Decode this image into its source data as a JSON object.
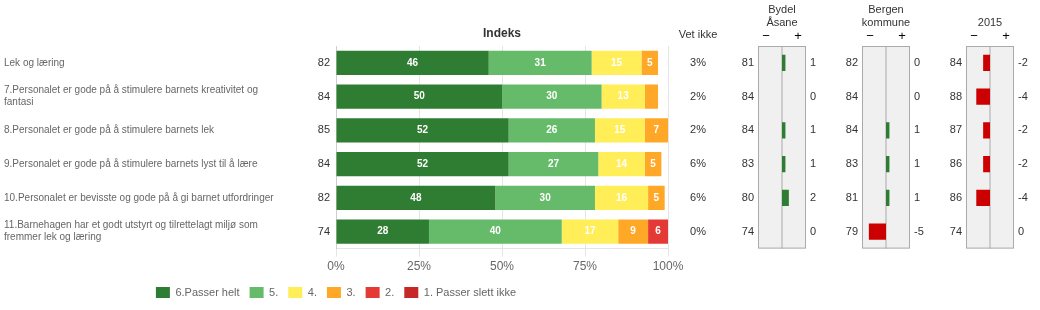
{
  "chart_data": [
    {
      "type": "bar",
      "orientation": "horizontal",
      "stacked": true,
      "title": "Indeks",
      "categories": [
        "Lek og læring",
        "7.Personalet er gode på å stimulere barnets kreativitet og\nfantasi",
        "8.Personalet er gode på å stimulere barnets lek",
        "9.Personalet er gode på å stimulere barnets lyst til å lære",
        "10.Personalet er bevisste og gode på å gi barnet utfordringer",
        "11.Barnehagen har et godt utstyrt og tilrettelagt miljø som\nfremmer lek og læring"
      ],
      "series": [
        {
          "name": "6.Passer helt",
          "color": "#2e7d32",
          "values": [
            46,
            50,
            52,
            52,
            48,
            28
          ],
          "value_labels": [
            "46",
            "50",
            "52",
            "52",
            "48",
            "28"
          ]
        },
        {
          "name": "5.",
          "color": "#66bb6a",
          "values": [
            31,
            30,
            26,
            27,
            30,
            40
          ],
          "value_labels": [
            "31",
            "30",
            "26",
            "27",
            "30",
            "40"
          ]
        },
        {
          "name": "4.",
          "color": "#ffee58",
          "values": [
            15,
            13,
            15,
            14,
            16,
            17
          ],
          "value_labels": [
            "15",
            "13",
            "15",
            "14",
            "16",
            "17"
          ]
        },
        {
          "name": "3.",
          "color": "#ffa726",
          "values": [
            5,
            4,
            7,
            5,
            5,
            9
          ],
          "value_labels": [
            "5",
            null,
            "7",
            "5",
            "5",
            "9"
          ]
        },
        {
          "name": "2.",
          "color": "#e53935",
          "values": [
            0,
            0,
            0,
            0,
            0,
            6
          ],
          "value_labels": [
            null,
            null,
            null,
            null,
            null,
            "6"
          ]
        },
        {
          "name": "1. Passer slett ikke",
          "color": "#c62828",
          "values": [
            null,
            null,
            null,
            null,
            null,
            null
          ]
        }
      ],
      "xlim": [
        0,
        100
      ],
      "xticks": [
        {
          "value": 0,
          "label": "0%"
        },
        {
          "value": 25,
          "label": "25%"
        },
        {
          "value": 50,
          "label": "50%"
        },
        {
          "value": 75,
          "label": "75%"
        },
        {
          "value": 100,
          "label": "100%"
        }
      ],
      "grid": true,
      "data_labels": true,
      "legend": "bottom",
      "index": [
        82,
        84,
        85,
        84,
        82,
        74
      ],
      "vet_ikke": {
        "title": "Vet ikke",
        "labels": [
          "3%",
          "2%",
          "2%",
          "6%",
          "6%",
          "0%"
        ]
      }
    },
    {
      "type": "bar",
      "orientation": "horizontal",
      "title": "Bydel\nÅsane",
      "values": [
        1,
        0,
        1,
        1,
        2,
        0
      ],
      "colors": [
        "#2e7d32",
        "#2e7d32",
        "#2e7d32",
        "#2e7d32",
        "#2e7d32",
        "#2e7d32"
      ],
      "xlim": [
        -7,
        7
      ],
      "tick_labels": false,
      "data_labels": true,
      "annotations": [
        "−",
        "+"
      ],
      "index": [
        81,
        84,
        84,
        83,
        80,
        74
      ]
    },
    {
      "type": "bar",
      "orientation": "horizontal",
      "title": "Bergen\nkommune",
      "values": [
        0,
        0,
        1,
        1,
        1,
        -5
      ],
      "colors": [
        "#2e7d32",
        "#2e7d32",
        "#2e7d32",
        "#2e7d32",
        "#2e7d32",
        "#cc0000"
      ],
      "xlim": [
        -7,
        7
      ],
      "tick_labels": false,
      "data_labels": true,
      "annotations": [
        "−",
        "+"
      ],
      "index": [
        82,
        84,
        84,
        83,
        81,
        79
      ]
    },
    {
      "type": "bar",
      "orientation": "horizontal",
      "title": "2015",
      "values": [
        -2,
        -4,
        -2,
        -2,
        -4,
        0
      ],
      "colors": [
        "#cc0000",
        "#cc0000",
        "#cc0000",
        "#cc0000",
        "#cc0000",
        "#2e7d32"
      ],
      "xlim": [
        -7,
        7
      ],
      "tick_labels": false,
      "data_labels": true,
      "annotations": [
        "−",
        "+"
      ],
      "index": [
        84,
        88,
        87,
        86,
        86,
        74
      ]
    }
  ]
}
